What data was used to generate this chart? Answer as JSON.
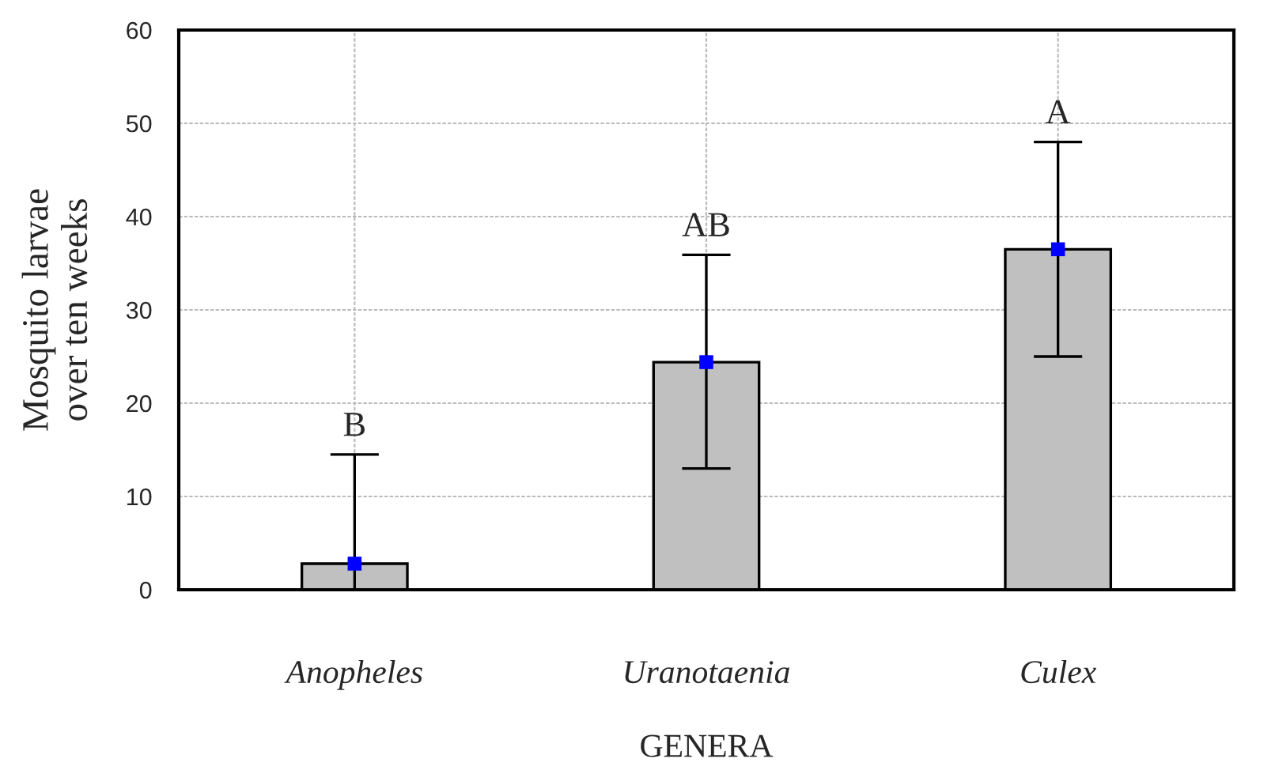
{
  "chart_data": {
    "type": "bar",
    "categories": [
      "Anopheles",
      "Uranotaenia",
      "Culex"
    ],
    "series": [
      {
        "color": "#c0c0c0",
        "values": [
          2.8,
          24.4,
          36.5
        ],
        "errors": [
          [
            0,
            14.5
          ],
          [
            13.0,
            35.9
          ],
          [
            25.0,
            48.0
          ]
        ]
      },
      {
        "type": "scatter",
        "color": "#0000ff",
        "x": [
          "Anopheles",
          "Uranotaenia",
          "Culex"
        ],
        "values": [
          2.8,
          24.4,
          36.5
        ],
        "marker": "square"
      }
    ],
    "xlabel": "GENERA",
    "ylabel": "Mosquito larvae\nover ten weeks",
    "ylim": [
      0,
      60
    ],
    "yticks": [
      0,
      10,
      20,
      30,
      40,
      50,
      60
    ],
    "annotations": [
      {
        "text": "B",
        "x": "Anopheles",
        "y": 14.5
      },
      {
        "text": "AB",
        "x": "Uranotaenia",
        "y": 35.9
      },
      {
        "text": "A",
        "x": "Culex",
        "y": 48.0
      }
    ],
    "grid": true
  }
}
